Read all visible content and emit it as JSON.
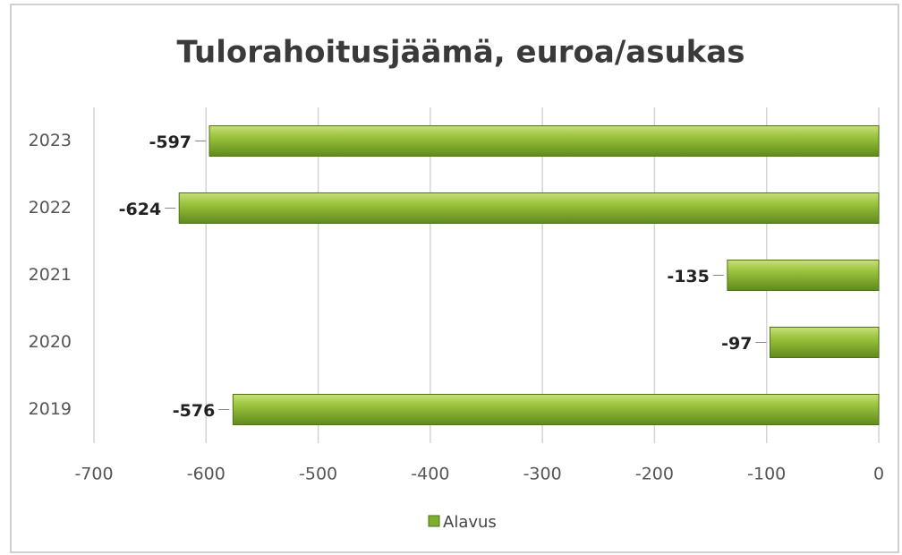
{
  "chart_data": {
    "type": "bar",
    "orientation": "horizontal",
    "title": "Tulorahoitusjäämä, euroa/asukas",
    "categories": [
      "2023",
      "2022",
      "2021",
      "2020",
      "2019"
    ],
    "series": [
      {
        "name": "Alavus",
        "color": "#7fae2e",
        "values": [
          -597,
          -624,
          -135,
          -97,
          -576
        ]
      }
    ],
    "xlim": [
      -700,
      0
    ],
    "xticks": [
      -700,
      -600,
      -500,
      -400,
      -300,
      -200,
      -100,
      0
    ],
    "grid": true,
    "legend": "bottom"
  }
}
